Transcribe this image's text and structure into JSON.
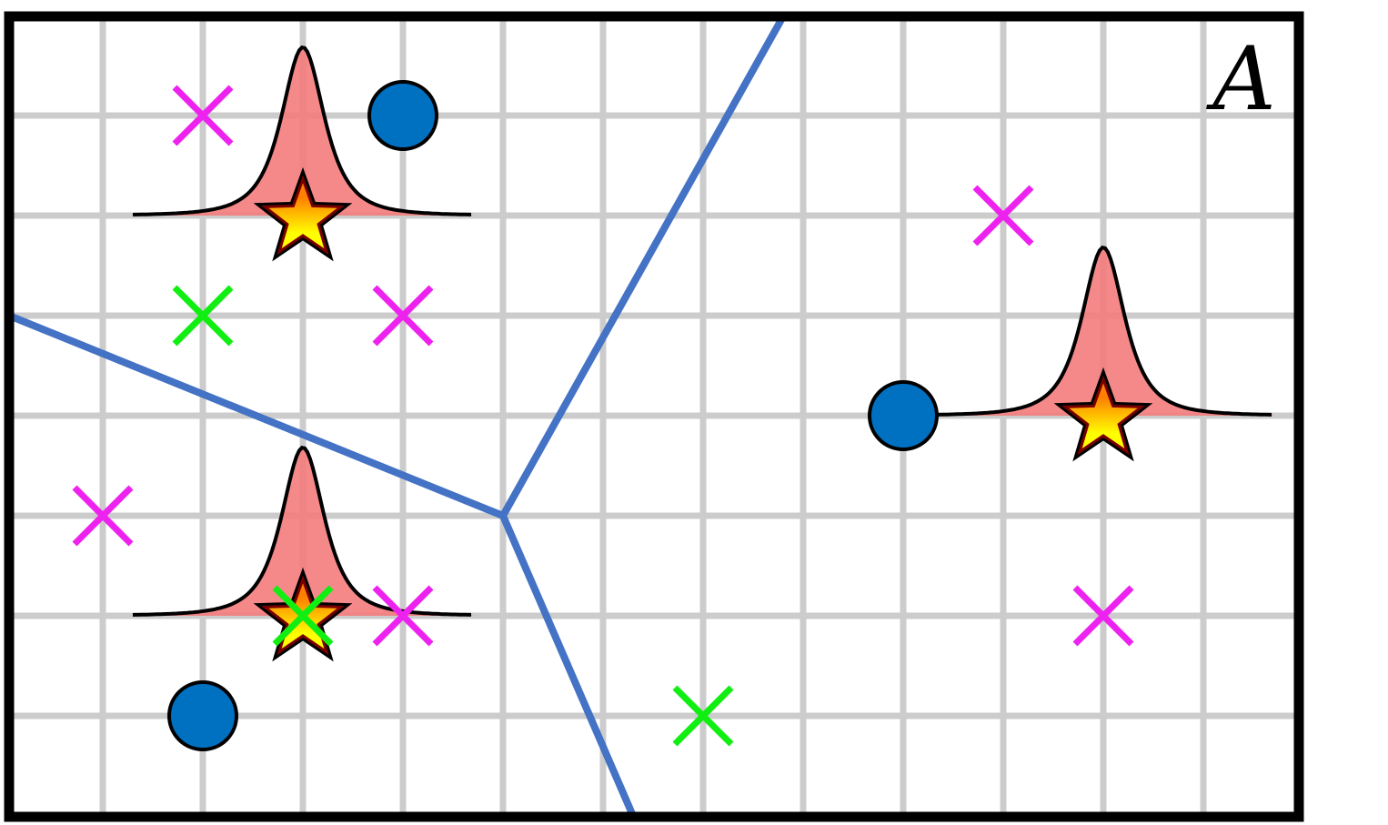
{
  "figure": {
    "corner_label": "A",
    "colors": {
      "frame": "#000000",
      "grid": "#cccccc",
      "boundary": "#4472c4",
      "circle_fill": "#0070c0",
      "cross_magenta": "#ee22ee",
      "cross_green": "#11ee11",
      "bump_fill": "#f47c7c",
      "star_gradient": [
        "#ffff00",
        "#ff7f00"
      ],
      "star_stroke_dark": "#7a0000"
    },
    "grid": {
      "columns": 13,
      "rows": 8
    },
    "boundaries": [
      {
        "name": "boundary-left",
        "from": [
          0.0,
          3.0
        ],
        "to": [
          5.0,
          5.0
        ]
      },
      {
        "name": "boundary-upper",
        "from": [
          5.0,
          5.0
        ],
        "to": [
          7.8,
          0.0
        ]
      },
      {
        "name": "boundary-lower",
        "from": [
          5.0,
          5.0
        ],
        "to": [
          6.3,
          8.0
        ]
      }
    ],
    "circles": [
      {
        "name": "circle-top",
        "x": 4,
        "y": 1
      },
      {
        "name": "circle-right",
        "x": 9,
        "y": 4
      },
      {
        "name": "circle-bottom",
        "x": 2,
        "y": 7
      }
    ],
    "crosses": [
      {
        "name": "cross-magenta-1",
        "x": 2,
        "y": 1,
        "color": "magenta"
      },
      {
        "name": "cross-green-1",
        "x": 2,
        "y": 3,
        "color": "green"
      },
      {
        "name": "cross-magenta-2",
        "x": 4,
        "y": 3,
        "color": "magenta"
      },
      {
        "name": "cross-magenta-3",
        "x": 1,
        "y": 5,
        "color": "magenta"
      },
      {
        "name": "cross-magenta-4",
        "x": 4,
        "y": 6,
        "color": "magenta"
      },
      {
        "name": "cross-green-2",
        "x": 3,
        "y": 6,
        "color": "green"
      },
      {
        "name": "cross-green-3",
        "x": 7,
        "y": 7,
        "color": "green"
      },
      {
        "name": "cross-magenta-5",
        "x": 10,
        "y": 2,
        "color": "magenta"
      },
      {
        "name": "cross-magenta-6",
        "x": 11,
        "y": 6,
        "color": "magenta"
      }
    ],
    "bumps": [
      {
        "name": "bump-top-left",
        "x": 3,
        "y": 2
      },
      {
        "name": "bump-bottom-left",
        "x": 3,
        "y": 6
      },
      {
        "name": "bump-right",
        "x": 11,
        "y": 4
      }
    ],
    "stars": [
      {
        "name": "star-top-left",
        "x": 3,
        "y": 2
      },
      {
        "name": "star-bottom-left",
        "x": 3,
        "y": 6
      },
      {
        "name": "star-right",
        "x": 11,
        "y": 4
      }
    ]
  }
}
